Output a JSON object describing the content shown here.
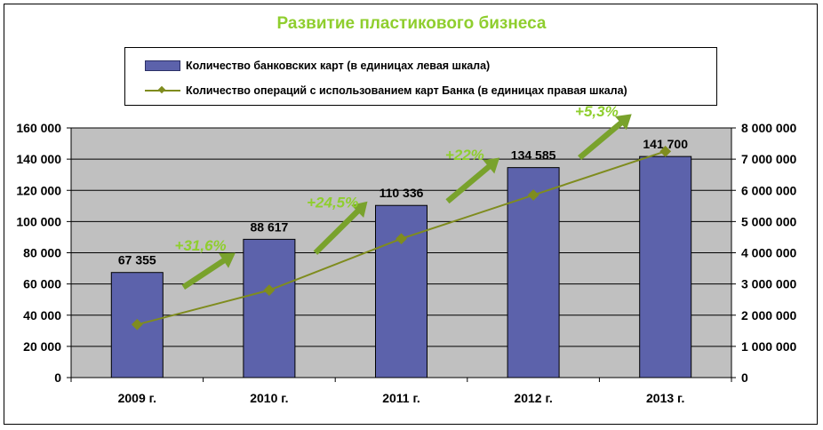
{
  "chart_data": {
    "type": "bar",
    "title": "Развитие пластикового бизнеса",
    "categories": [
      "2009 г.",
      "2010 г.",
      "2011 г.",
      "2012 г.",
      "2013 г."
    ],
    "series": [
      {
        "name": "Количество банковских карт (в единицах левая шкала)",
        "type": "bar",
        "axis": "left",
        "values": [
          67355,
          88617,
          110336,
          134585,
          141700
        ],
        "labels": [
          "67 355",
          "88 617",
          "110 336",
          "134 585",
          "141 700"
        ]
      },
      {
        "name": "Количество операций с использованием карт Банка (в единицах правая шкала)",
        "type": "line",
        "axis": "right",
        "values": [
          1700000,
          2800000,
          4450000,
          5850000,
          7250000
        ]
      }
    ],
    "ylim_left": [
      0,
      160000
    ],
    "ylim_right": [
      0,
      8000000
    ],
    "yticks_left": [
      "0",
      "20 000",
      "40 000",
      "60 000",
      "80 000",
      "100 000",
      "120 000",
      "140 000",
      "160 000"
    ],
    "yticks_right": [
      "0",
      "1 000 000",
      "2 000 000",
      "3 000 000",
      "4 000 000",
      "5 000 000",
      "6 000 000",
      "7 000 000",
      "8 000 000"
    ],
    "growth_annotations": [
      "+31,6%",
      "+24,5%",
      "+22%",
      "+5,3%"
    ],
    "grid": true,
    "legend_position": "top",
    "colors": {
      "bar": "#5c62ab",
      "line": "#7f8c1e",
      "arrow": "#79a22c",
      "annotation": "#8fce2e",
      "title": "#8fce2e",
      "plot_background": "#c0c0c0"
    }
  }
}
